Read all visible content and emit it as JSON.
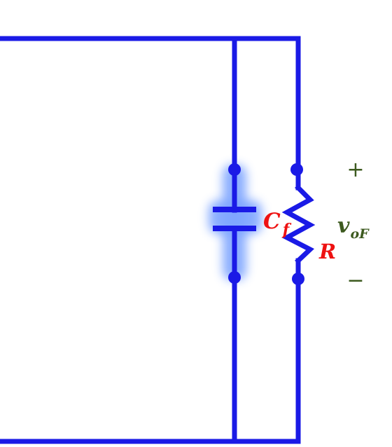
{
  "colors": {
    "wire": "#1a1ae6",
    "glow": "#7fa6ff",
    "component_label": "#ee1111",
    "voltage_label": "#3d5a1f"
  },
  "labels": {
    "capacitor_main": "C",
    "capacitor_sub": "f",
    "resistor": "R",
    "voltage_main": "v",
    "voltage_sub": "oF",
    "plus": "+",
    "minus": "−"
  }
}
